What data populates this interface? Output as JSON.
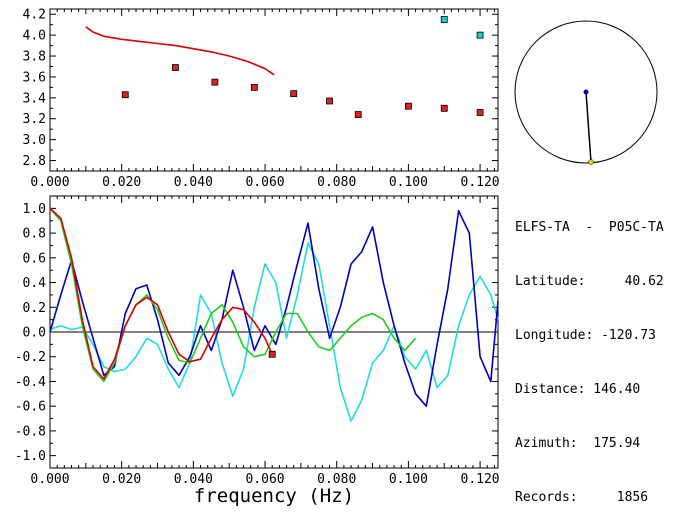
{
  "info": {
    "station": "ELFS-TA  -  P05C-TA",
    "rows": [
      {
        "label": "Latitude:",
        "value": "40.62"
      },
      {
        "label": "Longitude:",
        "value": "-120.73"
      },
      {
        "label": "Distance:",
        "value": "146.40"
      },
      {
        "label": "Azimuth:",
        "value": "175.94"
      },
      {
        "label": "Records:",
        "value": "1856"
      }
    ]
  },
  "colors": {
    "red": "#dd0000",
    "blue": "#0000bb",
    "green": "#22cc22",
    "cyan": "#22dddd",
    "marker_red": "#dd2222",
    "marker_cyan": "#22cccc"
  },
  "chart_data": [
    {
      "type": "scatter",
      "xlim": [
        0.0,
        0.125
      ],
      "ylim": [
        2.7,
        4.25
      ],
      "x_ticks": [
        "0.000",
        "0.020",
        "0.040",
        "0.060",
        "0.080",
        "0.100",
        "0.120"
      ],
      "y_ticks": [
        "2.8",
        "3.0",
        "3.2",
        "3.4",
        "3.6",
        "3.8",
        "4.0",
        "4.2"
      ],
      "curve": {
        "color": "red",
        "x": [
          0.01,
          0.012,
          0.015,
          0.02,
          0.025,
          0.03,
          0.035,
          0.04,
          0.045,
          0.05,
          0.055,
          0.06,
          0.0625
        ],
        "y": [
          4.08,
          4.03,
          3.99,
          3.96,
          3.94,
          3.92,
          3.9,
          3.87,
          3.84,
          3.8,
          3.75,
          3.68,
          3.62
        ]
      },
      "points_red": {
        "x": [
          0.021,
          0.035,
          0.046,
          0.057,
          0.068,
          0.078,
          0.086,
          0.1,
          0.11,
          0.12
        ],
        "y": [
          3.43,
          3.69,
          3.55,
          3.5,
          3.44,
          3.37,
          3.24,
          3.32,
          3.3,
          3.26
        ]
      },
      "points_cyan": {
        "x": [
          0.11,
          0.12
        ],
        "y": [
          4.15,
          4.0
        ]
      }
    },
    {
      "type": "line",
      "xlim": [
        0.0,
        0.125
      ],
      "ylim": [
        -1.1,
        1.1
      ],
      "x_ticks": [
        "0.000",
        "0.020",
        "0.040",
        "0.060",
        "0.080",
        "0.100",
        "0.120"
      ],
      "y_ticks": [
        "1.0",
        "0.8",
        "0.6",
        "0.4",
        "0.2",
        "0.0",
        "-0.2",
        "-0.4",
        "-0.6",
        "-0.8",
        "-1.0"
      ],
      "xlabel": "frequency (Hz)",
      "series": [
        {
          "color": "cyan",
          "x": [
            0.0,
            0.003,
            0.006,
            0.009,
            0.012,
            0.015,
            0.018,
            0.021,
            0.024,
            0.027,
            0.03,
            0.033,
            0.036,
            0.039,
            0.042,
            0.045,
            0.048,
            0.051,
            0.054,
            0.057,
            0.06,
            0.063,
            0.066,
            0.069,
            0.072,
            0.075,
            0.078,
            0.081,
            0.084,
            0.087,
            0.09,
            0.093,
            0.096,
            0.099,
            0.102,
            0.105,
            0.108,
            0.111,
            0.114,
            0.117,
            0.12,
            0.123,
            0.125
          ],
          "y": [
            0.02,
            0.05,
            0.02,
            0.04,
            -0.1,
            -0.28,
            -0.32,
            -0.3,
            -0.2,
            -0.05,
            -0.1,
            -0.3,
            -0.45,
            -0.25,
            0.3,
            0.15,
            -0.25,
            -0.52,
            -0.3,
            0.2,
            0.55,
            0.4,
            -0.05,
            0.3,
            0.72,
            0.55,
            0.05,
            -0.45,
            -0.72,
            -0.55,
            -0.25,
            -0.15,
            0.05,
            -0.2,
            -0.3,
            -0.15,
            -0.45,
            -0.35,
            0.05,
            0.3,
            0.45,
            0.3,
            0.1
          ]
        },
        {
          "color": "blue",
          "x": [
            0.0,
            0.003,
            0.006,
            0.009,
            0.012,
            0.015,
            0.018,
            0.021,
            0.024,
            0.027,
            0.03,
            0.033,
            0.036,
            0.039,
            0.042,
            0.045,
            0.048,
            0.051,
            0.054,
            0.057,
            0.06,
            0.063,
            0.066,
            0.069,
            0.072,
            0.075,
            0.078,
            0.081,
            0.084,
            0.087,
            0.09,
            0.093,
            0.096,
            0.099,
            0.102,
            0.105,
            0.108,
            0.111,
            0.114,
            0.117,
            0.12,
            0.123,
            0.125
          ],
          "y": [
            0.0,
            0.3,
            0.58,
            0.25,
            -0.05,
            -0.35,
            -0.28,
            0.15,
            0.35,
            0.38,
            0.1,
            -0.25,
            -0.35,
            -0.2,
            0.05,
            -0.15,
            0.1,
            0.5,
            0.2,
            -0.15,
            0.05,
            -0.1,
            0.2,
            0.55,
            0.88,
            0.35,
            -0.05,
            0.2,
            0.55,
            0.65,
            0.85,
            0.4,
            0.05,
            -0.25,
            -0.5,
            -0.6,
            -0.1,
            0.35,
            0.98,
            0.8,
            -0.2,
            -0.4,
            0.25
          ]
        },
        {
          "color": "green",
          "x": [
            0.0,
            0.003,
            0.006,
            0.009,
            0.012,
            0.015,
            0.018,
            0.021,
            0.024,
            0.027,
            0.03,
            0.033,
            0.036,
            0.039,
            0.042,
            0.045,
            0.048,
            0.051,
            0.054,
            0.057,
            0.06,
            0.063,
            0.066,
            0.069,
            0.072,
            0.075,
            0.078,
            0.081,
            0.084,
            0.087,
            0.09,
            0.093,
            0.096,
            0.099,
            0.102
          ],
          "y": [
            1.0,
            0.9,
            0.55,
            0.05,
            -0.3,
            -0.4,
            -0.25,
            0.05,
            0.22,
            0.3,
            0.18,
            -0.05,
            -0.23,
            -0.25,
            -0.05,
            0.15,
            0.22,
            0.08,
            -0.12,
            -0.2,
            -0.18,
            0.0,
            0.15,
            0.15,
            0.0,
            -0.12,
            -0.15,
            -0.05,
            0.05,
            0.12,
            0.15,
            0.1,
            -0.05,
            -0.15,
            -0.05
          ]
        },
        {
          "color": "red",
          "x": [
            0.0,
            0.003,
            0.006,
            0.009,
            0.012,
            0.015,
            0.018,
            0.021,
            0.024,
            0.027,
            0.03,
            0.033,
            0.036,
            0.039,
            0.042,
            0.045,
            0.048,
            0.051,
            0.054,
            0.057,
            0.06,
            0.062
          ],
          "y": [
            1.0,
            0.92,
            0.6,
            0.1,
            -0.28,
            -0.38,
            -0.22,
            0.05,
            0.22,
            0.28,
            0.22,
            0.0,
            -0.18,
            -0.24,
            -0.22,
            -0.05,
            0.1,
            0.2,
            0.18,
            0.08,
            -0.05,
            -0.18
          ]
        }
      ]
    }
  ]
}
